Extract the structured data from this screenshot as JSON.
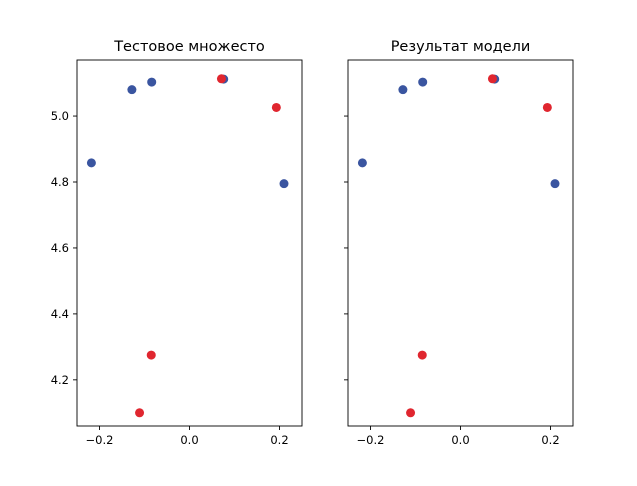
{
  "chart_data": [
    {
      "type": "scatter",
      "title": "Тестовое множесто",
      "xlabel": "",
      "ylabel": "",
      "xlim": [
        -0.25,
        0.25
      ],
      "ylim": [
        4.06,
        5.17
      ],
      "xticks": [
        -0.2,
        0.0,
        0.2
      ],
      "xtick_labels": [
        "−0.2",
        "0.0",
        "0.2"
      ],
      "yticks": [
        4.2,
        4.4,
        4.6,
        4.8,
        5.0
      ],
      "ytick_labels": [
        "4.2",
        "4.4",
        "4.6",
        "4.8",
        "5.0"
      ],
      "show_yticklabels": true,
      "grid": false,
      "series": [
        {
          "color": "#3a55a0",
          "points": [
            [
              -0.218,
              4.858
            ],
            [
              -0.128,
              5.08
            ],
            [
              -0.084,
              5.103
            ],
            [
              0.076,
              5.112
            ],
            [
              0.21,
              4.795
            ]
          ]
        },
        {
          "color": "#e0262f",
          "points": [
            [
              0.071,
              5.113
            ],
            [
              0.193,
              5.026
            ],
            [
              -0.085,
              4.275
            ],
            [
              -0.111,
              4.1
            ]
          ]
        }
      ]
    },
    {
      "type": "scatter",
      "title": "Результат модели",
      "xlabel": "",
      "ylabel": "",
      "xlim": [
        -0.25,
        0.25
      ],
      "ylim": [
        4.06,
        5.17
      ],
      "xticks": [
        -0.2,
        0.0,
        0.2
      ],
      "xtick_labels": [
        "−0.2",
        "0.0",
        "0.2"
      ],
      "yticks": [
        4.2,
        4.4,
        4.6,
        4.8,
        5.0
      ],
      "ytick_labels": [
        "4.2",
        "4.4",
        "4.6",
        "4.8",
        "5.0"
      ],
      "show_yticklabels": false,
      "grid": false,
      "series": [
        {
          "color": "#3a55a0",
          "points": [
            [
              -0.218,
              4.858
            ],
            [
              -0.128,
              5.08
            ],
            [
              -0.084,
              5.103
            ],
            [
              0.076,
              5.112
            ],
            [
              0.21,
              4.795
            ]
          ]
        },
        {
          "color": "#e0262f",
          "points": [
            [
              0.071,
              5.113
            ],
            [
              0.193,
              5.026
            ],
            [
              -0.085,
              4.275
            ],
            [
              -0.111,
              4.1
            ]
          ]
        }
      ]
    }
  ]
}
